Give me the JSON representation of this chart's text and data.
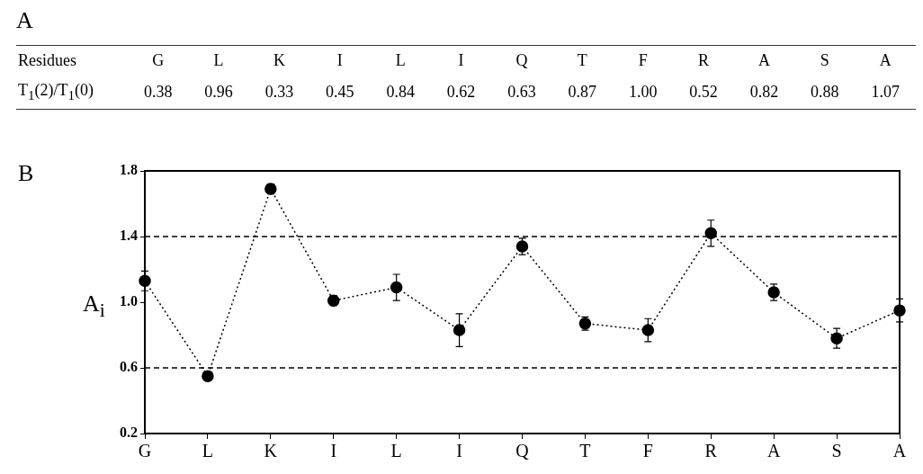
{
  "chart_data": [
    {
      "type": "other",
      "title": "A",
      "annotations": [
        "Residues",
        "T$_{1}$(2)/T$_{1}$(0)"
      ],
      "categories": [
        "G",
        "L",
        "K",
        "I",
        "L",
        "I",
        "Q",
        "T",
        "F",
        "R",
        "A",
        "S",
        "A"
      ],
      "value_labels": [
        "0.38",
        "0.96",
        "0.33",
        "0.45",
        "0.84",
        "0.62",
        "0.63",
        "0.87",
        "1.00",
        "0.52",
        "0.82",
        "0.88",
        "1.07"
      ]
    },
    {
      "type": "line",
      "title": "B",
      "ylabel": "A$_{i}$",
      "categories": [
        "G",
        "L",
        "K",
        "I",
        "L",
        "I",
        "Q",
        "T",
        "F",
        "R",
        "A",
        "S",
        "A"
      ],
      "values": [
        1.13,
        0.55,
        1.69,
        1.01,
        1.09,
        0.83,
        1.34,
        0.87,
        0.83,
        1.42,
        1.06,
        0.78,
        0.95
      ],
      "errors": [
        0.06,
        0.01,
        0.03,
        0.03,
        0.08,
        0.1,
        0.05,
        0.04,
        0.07,
        0.08,
        0.05,
        0.06,
        0.07
      ],
      "color": "#000000",
      "marker": "circle",
      "line_style": "dotted",
      "grid": false,
      "ylim": [
        0.2,
        1.8
      ],
      "yticks": [
        0.2,
        0.6,
        {
          "value": 1,
          "label": "1.0"
        },
        1.4,
        1.8
      ],
      "ref_lines": [
        {
          "axis": "y",
          "value": 1.4,
          "line_style": "dashed"
        },
        {
          "axis": "y",
          "value": 0.6,
          "line_style": "dashed"
        }
      ]
    }
  ]
}
